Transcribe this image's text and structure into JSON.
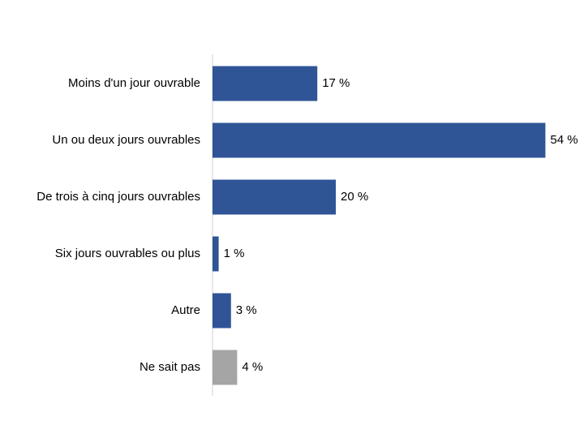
{
  "chart_data": {
    "type": "bar",
    "orientation": "horizontal",
    "categories": [
      "Moins d'un jour ouvrable",
      "Un ou deux jours ouvrables",
      "De trois à cinq jours ouvrables",
      "Six jours ouvrables ou plus",
      "Autre",
      "Ne sait pas"
    ],
    "values": [
      17,
      54,
      20,
      1,
      3,
      4
    ],
    "value_labels": [
      "17 %",
      "54 %",
      "20 %",
      "1 %",
      "3 %",
      "4 %"
    ],
    "colors": [
      "#2f5597",
      "#2f5597",
      "#2f5597",
      "#2f5597",
      "#2f5597",
      "#a5a5a5"
    ]
  }
}
